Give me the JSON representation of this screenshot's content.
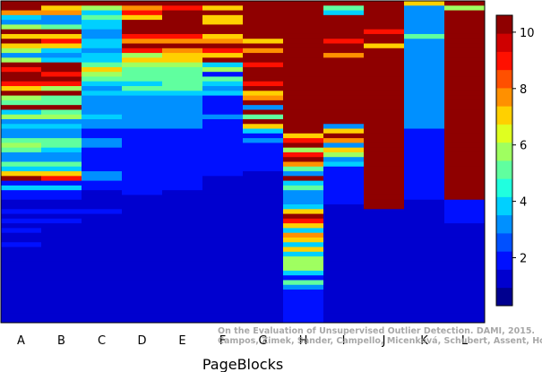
{
  "chart_data": {
    "type": "heatmap",
    "xlabel": "PageBlocks",
    "ylabel": "",
    "title": "",
    "categories": [
      "A",
      "B",
      "C",
      "D",
      "E",
      "F",
      "G",
      "H",
      "I",
      "J",
      "K",
      "L"
    ],
    "colorbar": {
      "min": 0.3,
      "max": 10.6,
      "ticks": [
        2,
        4,
        6,
        8,
        10
      ],
      "colormap": "jet"
    },
    "row_count": 68,
    "row_order": "top-to-bottom",
    "note": "",
    "columns": [
      {
        "name": "A",
        "values": [
          10,
          10,
          8,
          4,
          3,
          6,
          10,
          7,
          10,
          7,
          6,
          3,
          6,
          10,
          9,
          10,
          10,
          9,
          7,
          10,
          6,
          5,
          10,
          4,
          6,
          3,
          4,
          3,
          3,
          5,
          6,
          5,
          3,
          3,
          5,
          4,
          7,
          10,
          2,
          4,
          2,
          2,
          1,
          1,
          2,
          1,
          2,
          1,
          2,
          1,
          1,
          2,
          1,
          1,
          1,
          1,
          1,
          1,
          1,
          1,
          1,
          1,
          1,
          1,
          1,
          1,
          1,
          1
        ]
      },
      {
        "name": "B",
        "values": [
          10,
          7,
          8,
          3,
          3,
          5,
          10,
          7,
          9,
          7,
          4,
          3,
          4,
          10,
          10,
          9,
          10,
          9,
          6,
          10,
          5,
          5,
          10,
          5,
          6,
          3,
          4,
          3,
          3,
          5,
          5,
          4,
          3,
          3,
          5,
          4,
          7,
          9,
          2,
          4,
          2,
          2,
          1,
          1,
          2,
          1,
          2,
          1,
          1,
          1,
          1,
          1,
          1,
          1,
          1,
          1,
          1,
          1,
          1,
          1,
          1,
          1,
          1,
          1,
          1,
          1,
          1,
          1
        ]
      },
      {
        "name": "C",
        "values": [
          10,
          6,
          4,
          5,
          4,
          4,
          3,
          3,
          4,
          4,
          3,
          4,
          4,
          5,
          7,
          6,
          5,
          4,
          3,
          4,
          3,
          3,
          3,
          3,
          4,
          3,
          3,
          2,
          2,
          3,
          3,
          2,
          2,
          2,
          2,
          2,
          3,
          3,
          2,
          2,
          1,
          1,
          1,
          1,
          2,
          1,
          1,
          1,
          1,
          1,
          1,
          1,
          1,
          1,
          1,
          1,
          1,
          1,
          1,
          1,
          1,
          1,
          1,
          1,
          1,
          1,
          1,
          1
        ]
      },
      {
        "name": "D",
        "values": [
          10,
          8,
          9,
          7,
          10,
          10,
          10,
          9,
          8,
          10,
          9,
          6,
          7,
          6,
          5,
          5,
          5,
          4,
          5,
          4,
          3,
          3,
          3,
          3,
          3,
          3,
          3,
          2,
          2,
          2,
          2,
          2,
          2,
          2,
          2,
          2,
          2,
          2,
          2,
          2,
          2,
          1,
          1,
          1,
          1,
          1,
          1,
          1,
          1,
          1,
          1,
          1,
          1,
          1,
          1,
          1,
          1,
          1,
          1,
          1,
          1,
          1,
          1,
          1,
          1,
          1,
          1,
          1
        ]
      },
      {
        "name": "E",
        "values": [
          10,
          9,
          10,
          10,
          10,
          10,
          10,
          9,
          8,
          10,
          8,
          7,
          7,
          6,
          5,
          5,
          5,
          5,
          5,
          4,
          3,
          3,
          3,
          3,
          3,
          3,
          3,
          2,
          2,
          2,
          2,
          2,
          2,
          2,
          2,
          2,
          2,
          2,
          2,
          2,
          1,
          1,
          1,
          1,
          1,
          1,
          1,
          1,
          1,
          1,
          1,
          1,
          1,
          1,
          1,
          1,
          1,
          1,
          1,
          1,
          1,
          1,
          1,
          1,
          1,
          1,
          1,
          1
        ]
      },
      {
        "name": "F",
        "values": [
          10,
          7,
          10,
          7,
          7,
          10,
          10,
          7,
          8,
          10,
          9,
          7,
          10,
          4,
          6,
          2,
          5,
          4,
          3,
          4,
          2,
          2,
          2,
          2,
          3,
          2,
          2,
          2,
          2,
          2,
          2,
          2,
          2,
          2,
          2,
          2,
          2,
          1,
          1,
          1,
          1,
          1,
          1,
          1,
          1,
          1,
          1,
          1,
          1,
          1,
          1,
          1,
          1,
          1,
          1,
          1,
          1,
          1,
          1,
          1,
          1,
          1,
          1,
          1,
          1,
          1,
          1,
          1
        ]
      },
      {
        "name": "G",
        "values": [
          10,
          10,
          10,
          10,
          10,
          10,
          10,
          10,
          7,
          10,
          8,
          10,
          10,
          9,
          10,
          10,
          10,
          9,
          10,
          7,
          8,
          10,
          3,
          10,
          5,
          10,
          7,
          4,
          2,
          3,
          2,
          2,
          2,
          2,
          2,
          2,
          1,
          1,
          1,
          1,
          1,
          1,
          1,
          1,
          1,
          1,
          1,
          1,
          1,
          1,
          1,
          1,
          1,
          1,
          1,
          1,
          1,
          1,
          1,
          1,
          1,
          1,
          1,
          1,
          1,
          1,
          1,
          1
        ]
      },
      {
        "name": "H",
        "values": [
          10,
          10,
          10,
          10,
          10,
          10,
          10,
          10,
          10,
          10,
          10,
          10,
          10,
          10,
          10,
          10,
          10,
          10,
          10,
          10,
          10,
          10,
          10,
          10,
          10,
          10,
          10,
          10,
          7,
          9,
          10,
          6,
          9,
          10,
          8,
          5,
          3,
          10,
          4,
          5,
          3,
          3,
          3,
          4,
          7,
          10,
          9,
          7,
          4,
          8,
          7,
          4,
          7,
          4,
          6,
          6,
          6,
          4,
          2,
          5,
          3,
          2,
          2,
          2,
          2,
          2,
          2,
          2
        ]
      },
      {
        "name": "I",
        "values": [
          10,
          5,
          4,
          10,
          10,
          10,
          10,
          10,
          9,
          10,
          10,
          8,
          10,
          10,
          10,
          10,
          10,
          10,
          10,
          10,
          10,
          10,
          10,
          10,
          10,
          10,
          3,
          7,
          10,
          8,
          3,
          7,
          6,
          3,
          4,
          2,
          2,
          2,
          2,
          2,
          2,
          2,
          2,
          1,
          1,
          1,
          1,
          1,
          1,
          1,
          1,
          1,
          1,
          1,
          1,
          1,
          1,
          1,
          1,
          1,
          1,
          1,
          1,
          1,
          1,
          1,
          1,
          1
        ]
      },
      {
        "name": "J",
        "values": [
          10,
          10,
          10,
          10,
          10,
          10,
          9,
          10,
          10,
          7,
          10,
          10,
          10,
          10,
          10,
          10,
          10,
          10,
          10,
          10,
          10,
          10,
          10,
          10,
          10,
          10,
          10,
          10,
          10,
          10,
          10,
          10,
          10,
          10,
          10,
          10,
          10,
          10,
          10,
          10,
          10,
          10,
          10,
          10,
          1,
          1,
          1,
          1,
          1,
          1,
          1,
          1,
          1,
          1,
          1,
          1,
          1,
          1,
          1,
          1,
          1,
          1,
          1,
          1,
          1,
          1,
          1,
          1
        ]
      },
      {
        "name": "K",
        "values": [
          7,
          3,
          3,
          3,
          3,
          3,
          3,
          5,
          3,
          3,
          3,
          3,
          3,
          3,
          3,
          3,
          3,
          3,
          3,
          3,
          3,
          3,
          3,
          3,
          3,
          3,
          3,
          2,
          2,
          2,
          2,
          2,
          2,
          2,
          2,
          2,
          2,
          2,
          2,
          2,
          2,
          2,
          1,
          1,
          1,
          1,
          1,
          1,
          1,
          1,
          1,
          1,
          1,
          1,
          1,
          1,
          1,
          1,
          1,
          1,
          1,
          1,
          1,
          1,
          1,
          1,
          1,
          1
        ]
      },
      {
        "name": "L",
        "values": [
          10,
          6,
          10,
          10,
          10,
          10,
          10,
          10,
          10,
          10,
          10,
          10,
          10,
          10,
          10,
          10,
          10,
          10,
          10,
          10,
          10,
          10,
          10,
          10,
          10,
          10,
          10,
          10,
          10,
          10,
          10,
          10,
          10,
          10,
          10,
          10,
          10,
          10,
          10,
          10,
          10,
          10,
          2,
          2,
          2,
          2,
          2,
          1,
          1,
          1,
          1,
          1,
          1,
          1,
          1,
          1,
          1,
          1,
          1,
          1,
          1,
          1,
          1,
          1,
          1,
          1,
          1,
          1
        ]
      }
    ]
  },
  "credit": {
    "line1": "On the Evaluation of Unsupervised Outlier Detection. DAMI, 2015.",
    "line2": "Campos, Zimek, Sander, Campello, Micenková, Schubert, Assent, Houle"
  }
}
